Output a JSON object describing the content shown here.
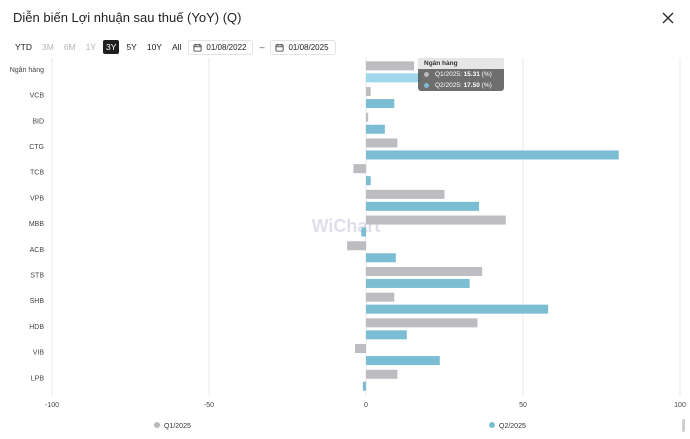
{
  "header": {
    "title": "Diễn biến Lợi nhuận sau thuế (YoY) (Q)"
  },
  "toolbar": {
    "ranges": [
      {
        "label": "YTD",
        "state": "normal"
      },
      {
        "label": "3M",
        "state": "disabled"
      },
      {
        "label": "6M",
        "state": "disabled"
      },
      {
        "label": "1Y",
        "state": "disabled"
      },
      {
        "label": "3Y",
        "state": "active"
      },
      {
        "label": "5Y",
        "state": "normal"
      },
      {
        "label": "10Y",
        "state": "normal"
      },
      {
        "label": "All",
        "state": "normal"
      }
    ],
    "date_from": "01/08/2022",
    "date_to": "01/08/2025",
    "separator": "–"
  },
  "watermark": "WiChart",
  "tooltip": {
    "title": "Ngân hàng",
    "rows": [
      {
        "series": "Q1/2025",
        "value": "15.31",
        "unit": "(%)",
        "color": "#b9b8bd"
      },
      {
        "series": "Q2/2025",
        "value": "17.50",
        "unit": "(%)",
        "color": "#7bbdd3"
      }
    ]
  },
  "colors": {
    "q1": "#bdbcc1",
    "q2": "#7bbdd3",
    "q2_highlight": "#9fd8ea"
  },
  "chart_data": {
    "type": "bar",
    "orientation": "horizontal",
    "title": "Diễn biến Lợi nhuận sau thuế (YoY) (Q)",
    "xlabel": "",
    "ylabel": "",
    "xlim": [
      -100,
      100
    ],
    "xticks": [
      -100,
      -50,
      0,
      50,
      100
    ],
    "grid": true,
    "legend_position": "bottom",
    "categories": [
      "Ngân hàng",
      "VCB",
      "BID",
      "CTG",
      "TCB",
      "VPB",
      "MBB",
      "ACB",
      "STB",
      "SHB",
      "HDB",
      "VIB",
      "LPB"
    ],
    "series": [
      {
        "name": "Q1/2025",
        "values": [
          15.31,
          1.5,
          0.7,
          10,
          -4,
          25,
          44.5,
          -6,
          37,
          9,
          35.5,
          -3.5,
          10
        ]
      },
      {
        "name": "Q2/2025",
        "values": [
          17.5,
          9,
          6,
          80.5,
          1.5,
          36,
          -1.5,
          9.5,
          33,
          58,
          13,
          23.5,
          -1
        ]
      }
    ]
  }
}
